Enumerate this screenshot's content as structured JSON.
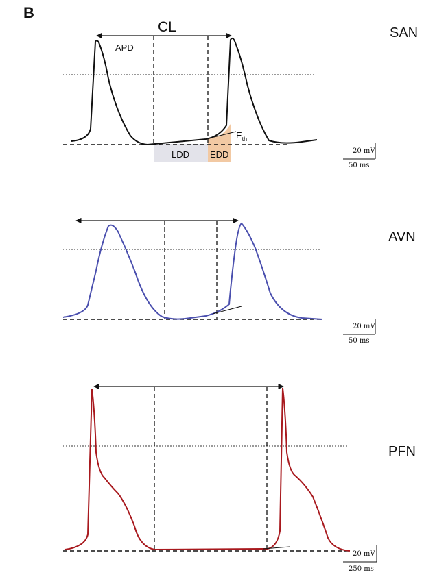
{
  "figure": {
    "panel_letter": "B",
    "traces": [
      {
        "name": "SAN",
        "color": "#111111",
        "labels": {
          "cycle_length": "CL",
          "action_potential_duration": "APD",
          "threshold": "E",
          "threshold_sub": "th",
          "late_diastolic_depolarization": "LDD",
          "early_diastolic_depolarization": "EDD"
        },
        "scale_bar": {
          "voltage": "20 mV",
          "time": "50 ms"
        }
      },
      {
        "name": "AVN",
        "color": "#4a4fae",
        "scale_bar": {
          "voltage": "20 mV",
          "time": "50 ms"
        }
      },
      {
        "name": "PFN",
        "color": "#a8191e",
        "scale_bar": {
          "voltage": "20 mV",
          "time": "250 ms"
        }
      }
    ],
    "highlight_colors": {
      "ldd": "#e3e3ea",
      "edd": "#f2c9a3"
    }
  }
}
